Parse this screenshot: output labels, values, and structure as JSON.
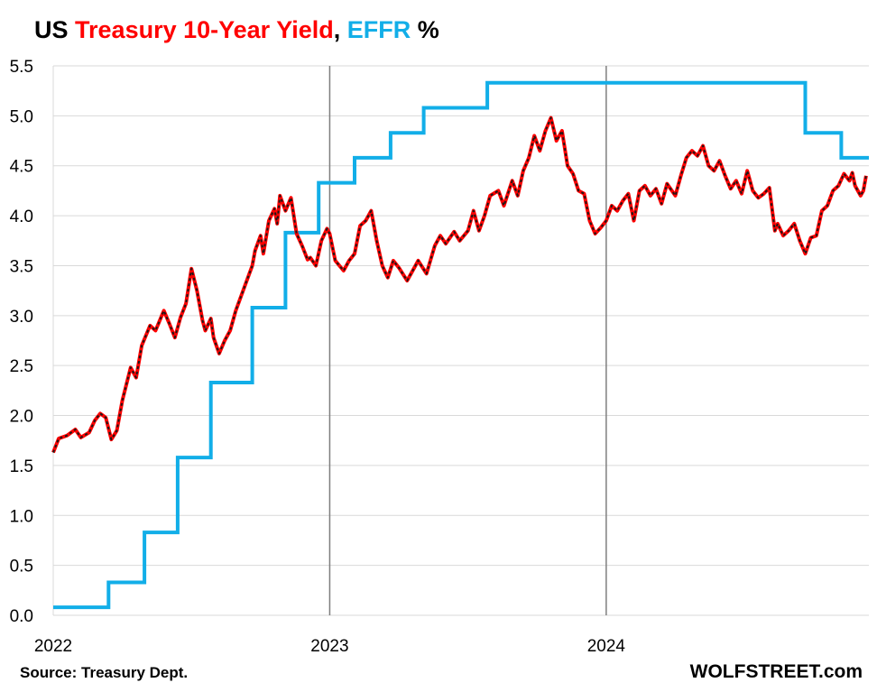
{
  "title": {
    "part1": "US",
    "part2": "Treasury 10-Year Yield",
    "part3": ",",
    "part4": "EFFR",
    "part5": "%"
  },
  "source": "Source: Treasury Dept.",
  "brand": "WOLFSTREET.com",
  "colors": {
    "yield": "#ff0000",
    "yield_overlay": "#1a1a1a",
    "effr": "#12aee8",
    "title_dark": "#000000",
    "grid": "#d9d9d9",
    "year_line": "#7f7f7f"
  },
  "chart_data": {
    "type": "line",
    "xlim": [
      2022.0,
      2024.95
    ],
    "ylim": [
      0.0,
      5.5
    ],
    "y_ticks": [
      "0.0",
      "0.5",
      "1.0",
      "1.5",
      "2.0",
      "2.5",
      "3.0",
      "3.5",
      "4.0",
      "4.5",
      "5.0",
      "5.5"
    ],
    "x_ticks": [
      {
        "x": 2022.0,
        "label": "2022"
      },
      {
        "x": 2023.0,
        "label": "2023"
      },
      {
        "x": 2024.0,
        "label": "2024"
      }
    ],
    "grid": "horizontal",
    "legend": "none",
    "series": [
      {
        "name": "Treasury 10-Year Yield",
        "style": "red line with black dashed overlay",
        "points": [
          [
            2022.0,
            1.63
          ],
          [
            2022.02,
            1.77
          ],
          [
            2022.05,
            1.8
          ],
          [
            2022.08,
            1.86
          ],
          [
            2022.1,
            1.78
          ],
          [
            2022.13,
            1.83
          ],
          [
            2022.15,
            1.95
          ],
          [
            2022.17,
            2.02
          ],
          [
            2022.19,
            1.98
          ],
          [
            2022.21,
            1.76
          ],
          [
            2022.23,
            1.85
          ],
          [
            2022.25,
            2.15
          ],
          [
            2022.28,
            2.48
          ],
          [
            2022.3,
            2.38
          ],
          [
            2022.32,
            2.7
          ],
          [
            2022.35,
            2.9
          ],
          [
            2022.37,
            2.85
          ],
          [
            2022.4,
            3.05
          ],
          [
            2022.42,
            2.92
          ],
          [
            2022.44,
            2.78
          ],
          [
            2022.46,
            2.98
          ],
          [
            2022.48,
            3.12
          ],
          [
            2022.5,
            3.47
          ],
          [
            2022.52,
            3.25
          ],
          [
            2022.54,
            2.95
          ],
          [
            2022.55,
            2.85
          ],
          [
            2022.57,
            2.97
          ],
          [
            2022.58,
            2.78
          ],
          [
            2022.6,
            2.62
          ],
          [
            2022.62,
            2.75
          ],
          [
            2022.64,
            2.85
          ],
          [
            2022.66,
            3.05
          ],
          [
            2022.68,
            3.2
          ],
          [
            2022.7,
            3.35
          ],
          [
            2022.72,
            3.5
          ],
          [
            2022.73,
            3.65
          ],
          [
            2022.75,
            3.8
          ],
          [
            2022.76,
            3.62
          ],
          [
            2022.78,
            3.95
          ],
          [
            2022.8,
            4.07
          ],
          [
            2022.81,
            3.92
          ],
          [
            2022.82,
            4.2
          ],
          [
            2022.84,
            4.05
          ],
          [
            2022.86,
            4.18
          ],
          [
            2022.88,
            3.82
          ],
          [
            2022.9,
            3.7
          ],
          [
            2022.92,
            3.56
          ],
          [
            2022.93,
            3.58
          ],
          [
            2022.95,
            3.5
          ],
          [
            2022.97,
            3.75
          ],
          [
            2022.99,
            3.87
          ],
          [
            2023.0,
            3.82
          ],
          [
            2023.02,
            3.55
          ],
          [
            2023.05,
            3.45
          ],
          [
            2023.07,
            3.55
          ],
          [
            2023.09,
            3.62
          ],
          [
            2023.11,
            3.9
          ],
          [
            2023.13,
            3.95
          ],
          [
            2023.15,
            4.05
          ],
          [
            2023.17,
            3.75
          ],
          [
            2023.19,
            3.5
          ],
          [
            2023.21,
            3.38
          ],
          [
            2023.23,
            3.55
          ],
          [
            2023.25,
            3.48
          ],
          [
            2023.28,
            3.35
          ],
          [
            2023.3,
            3.45
          ],
          [
            2023.32,
            3.55
          ],
          [
            2023.35,
            3.42
          ],
          [
            2023.38,
            3.7
          ],
          [
            2023.4,
            3.8
          ],
          [
            2023.42,
            3.72
          ],
          [
            2023.45,
            3.84
          ],
          [
            2023.47,
            3.75
          ],
          [
            2023.5,
            3.85
          ],
          [
            2023.52,
            4.05
          ],
          [
            2023.54,
            3.85
          ],
          [
            2023.56,
            4.0
          ],
          [
            2023.58,
            4.2
          ],
          [
            2023.61,
            4.25
          ],
          [
            2023.63,
            4.1
          ],
          [
            2023.66,
            4.35
          ],
          [
            2023.68,
            4.2
          ],
          [
            2023.7,
            4.45
          ],
          [
            2023.72,
            4.58
          ],
          [
            2023.74,
            4.8
          ],
          [
            2023.76,
            4.65
          ],
          [
            2023.78,
            4.85
          ],
          [
            2023.8,
            4.98
          ],
          [
            2023.82,
            4.75
          ],
          [
            2023.84,
            4.85
          ],
          [
            2023.86,
            4.5
          ],
          [
            2023.88,
            4.42
          ],
          [
            2023.9,
            4.25
          ],
          [
            2023.92,
            4.22
          ],
          [
            2023.94,
            3.95
          ],
          [
            2023.96,
            3.82
          ],
          [
            2023.98,
            3.88
          ],
          [
            2024.0,
            3.95
          ],
          [
            2024.02,
            4.1
          ],
          [
            2024.04,
            4.05
          ],
          [
            2024.06,
            4.15
          ],
          [
            2024.08,
            4.22
          ],
          [
            2024.1,
            3.95
          ],
          [
            2024.12,
            4.25
          ],
          [
            2024.14,
            4.3
          ],
          [
            2024.16,
            4.2
          ],
          [
            2024.18,
            4.27
          ],
          [
            2024.2,
            4.12
          ],
          [
            2024.22,
            4.32
          ],
          [
            2024.25,
            4.2
          ],
          [
            2024.27,
            4.4
          ],
          [
            2024.29,
            4.58
          ],
          [
            2024.31,
            4.65
          ],
          [
            2024.33,
            4.6
          ],
          [
            2024.35,
            4.7
          ],
          [
            2024.37,
            4.5
          ],
          [
            2024.39,
            4.45
          ],
          [
            2024.41,
            4.55
          ],
          [
            2024.43,
            4.4
          ],
          [
            2024.45,
            4.27
          ],
          [
            2024.47,
            4.35
          ],
          [
            2024.49,
            4.22
          ],
          [
            2024.51,
            4.45
          ],
          [
            2024.53,
            4.25
          ],
          [
            2024.55,
            4.18
          ],
          [
            2024.57,
            4.22
          ],
          [
            2024.59,
            4.28
          ],
          [
            2024.61,
            3.85
          ],
          [
            2024.62,
            3.92
          ],
          [
            2024.64,
            3.8
          ],
          [
            2024.66,
            3.85
          ],
          [
            2024.68,
            3.92
          ],
          [
            2024.7,
            3.75
          ],
          [
            2024.72,
            3.62
          ],
          [
            2024.74,
            3.78
          ],
          [
            2024.76,
            3.8
          ],
          [
            2024.78,
            4.05
          ],
          [
            2024.8,
            4.1
          ],
          [
            2024.82,
            4.25
          ],
          [
            2024.84,
            4.3
          ],
          [
            2024.86,
            4.42
          ],
          [
            2024.88,
            4.35
          ],
          [
            2024.89,
            4.43
          ],
          [
            2024.9,
            4.3
          ],
          [
            2024.92,
            4.2
          ],
          [
            2024.93,
            4.25
          ],
          [
            2024.94,
            4.4
          ]
        ]
      },
      {
        "name": "EFFR",
        "style": "blue step line",
        "points": [
          [
            2022.0,
            0.08
          ],
          [
            2022.2,
            0.08
          ],
          [
            2022.2,
            0.33
          ],
          [
            2022.33,
            0.33
          ],
          [
            2022.33,
            0.83
          ],
          [
            2022.45,
            0.83
          ],
          [
            2022.45,
            1.58
          ],
          [
            2022.57,
            1.58
          ],
          [
            2022.57,
            2.33
          ],
          [
            2022.72,
            2.33
          ],
          [
            2022.72,
            3.08
          ],
          [
            2022.84,
            3.08
          ],
          [
            2022.84,
            3.83
          ],
          [
            2022.96,
            3.83
          ],
          [
            2022.96,
            4.33
          ],
          [
            2023.09,
            4.33
          ],
          [
            2023.09,
            4.58
          ],
          [
            2023.22,
            4.58
          ],
          [
            2023.22,
            4.83
          ],
          [
            2023.34,
            4.83
          ],
          [
            2023.34,
            5.08
          ],
          [
            2023.57,
            5.08
          ],
          [
            2023.57,
            5.33
          ],
          [
            2024.72,
            5.33
          ],
          [
            2024.72,
            4.83
          ],
          [
            2024.85,
            4.83
          ],
          [
            2024.85,
            4.58
          ],
          [
            2024.95,
            4.58
          ]
        ]
      }
    ]
  }
}
